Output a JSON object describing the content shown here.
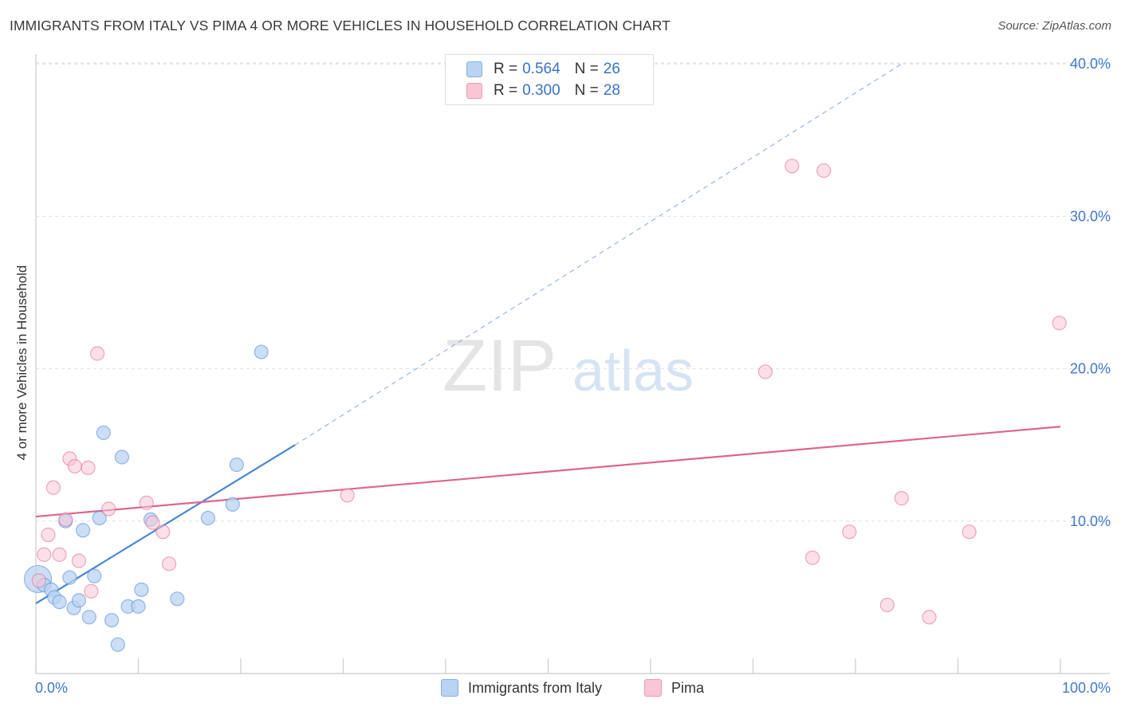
{
  "title": "IMMIGRANTS FROM ITALY VS PIMA 4 OR MORE VEHICLES IN HOUSEHOLD CORRELATION CHART",
  "source": "Source: ZipAtlas.com",
  "watermark": {
    "zip": "ZIP",
    "atlas": "atlas"
  },
  "legend": {
    "rows": [
      {
        "r_label": "R =",
        "r_value": "0.564",
        "n_label": "N =",
        "n_value": "26",
        "color": "#b9d3f3",
        "border": "#8ab0e0"
      },
      {
        "r_label": "R =",
        "r_value": "0.300",
        "n_label": "N =",
        "n_value": "28",
        "color": "#f8c6d5",
        "border": "#ee9ab3"
      }
    ]
  },
  "bottom_legend": [
    {
      "label": "Immigrants from Italy",
      "color": "#b9d3f3",
      "border": "#8ab0e0"
    },
    {
      "label": "Pima",
      "color": "#f8c6d5",
      "border": "#ee9ab3"
    }
  ],
  "chart_data": {
    "type": "scatter",
    "title": "IMMIGRANTS FROM ITALY VS PIMA 4 OR MORE VEHICLES IN HOUSEHOLD CORRELATION CHART",
    "xlabel": "",
    "ylabel": "4 or more Vehicles in Household",
    "xlim": [
      0,
      100
    ],
    "ylim": [
      0,
      41
    ],
    "x_tick_labels": [
      "0.0%",
      "100.0%"
    ],
    "y_ticks": [
      10,
      20,
      30,
      40
    ],
    "y_tick_labels": [
      "10.0%",
      "20.0%",
      "30.0%",
      "40.0%"
    ],
    "grid": true,
    "series": [
      {
        "name": "Immigrants from Italy",
        "color": "#4a86d4",
        "fill": "#b9d3f3",
        "points": [
          {
            "x": 0.2,
            "y": 6.2,
            "big": true
          },
          {
            "x": 0.8,
            "y": 5.8
          },
          {
            "x": 1.5,
            "y": 5.5
          },
          {
            "x": 1.8,
            "y": 5.0
          },
          {
            "x": 2.3,
            "y": 4.7
          },
          {
            "x": 2.9,
            "y": 10.0
          },
          {
            "x": 3.3,
            "y": 6.3
          },
          {
            "x": 3.7,
            "y": 4.3
          },
          {
            "x": 4.2,
            "y": 4.8
          },
          {
            "x": 4.6,
            "y": 9.4
          },
          {
            "x": 5.2,
            "y": 3.7
          },
          {
            "x": 5.7,
            "y": 6.4
          },
          {
            "x": 6.2,
            "y": 10.2
          },
          {
            "x": 6.6,
            "y": 15.8
          },
          {
            "x": 7.4,
            "y": 3.5
          },
          {
            "x": 8.0,
            "y": 1.9
          },
          {
            "x": 8.4,
            "y": 14.2
          },
          {
            "x": 9.0,
            "y": 4.4
          },
          {
            "x": 10.0,
            "y": 4.4
          },
          {
            "x": 10.3,
            "y": 5.5
          },
          {
            "x": 11.2,
            "y": 10.1
          },
          {
            "x": 13.8,
            "y": 4.9
          },
          {
            "x": 16.8,
            "y": 10.2
          },
          {
            "x": 19.2,
            "y": 11.1
          },
          {
            "x": 19.6,
            "y": 13.7
          },
          {
            "x": 22.0,
            "y": 21.1
          }
        ],
        "trend": {
          "x1": 0,
          "y1": 4.6,
          "x2": 25.3,
          "y2": 15.0,
          "dash_x2": 84.5,
          "dash_y2": 40.0
        }
      },
      {
        "name": "Pima",
        "color": "#e0648e",
        "fill": "#f8c6d5",
        "points": [
          {
            "x": 0.3,
            "y": 6.1
          },
          {
            "x": 0.8,
            "y": 7.8
          },
          {
            "x": 1.2,
            "y": 9.1
          },
          {
            "x": 1.7,
            "y": 12.2
          },
          {
            "x": 2.3,
            "y": 7.8
          },
          {
            "x": 2.9,
            "y": 10.1
          },
          {
            "x": 3.3,
            "y": 14.1
          },
          {
            "x": 3.8,
            "y": 13.6
          },
          {
            "x": 4.2,
            "y": 7.4
          },
          {
            "x": 5.1,
            "y": 13.5
          },
          {
            "x": 5.4,
            "y": 5.4
          },
          {
            "x": 6.0,
            "y": 21.0
          },
          {
            "x": 7.1,
            "y": 10.8
          },
          {
            "x": 10.8,
            "y": 11.2
          },
          {
            "x": 11.4,
            "y": 9.9
          },
          {
            "x": 12.4,
            "y": 9.3
          },
          {
            "x": 13.0,
            "y": 7.2
          },
          {
            "x": 30.4,
            "y": 11.7
          },
          {
            "x": 71.2,
            "y": 19.8
          },
          {
            "x": 73.8,
            "y": 33.3
          },
          {
            "x": 75.8,
            "y": 7.6
          },
          {
            "x": 76.9,
            "y": 33.0
          },
          {
            "x": 79.4,
            "y": 9.3
          },
          {
            "x": 83.1,
            "y": 4.5
          },
          {
            "x": 84.5,
            "y": 11.5
          },
          {
            "x": 87.2,
            "y": 3.7
          },
          {
            "x": 91.1,
            "y": 9.3
          },
          {
            "x": 99.9,
            "y": 23.0
          }
        ],
        "trend": {
          "x1": 0,
          "y1": 10.3,
          "x2": 100,
          "y2": 16.2
        }
      }
    ]
  }
}
